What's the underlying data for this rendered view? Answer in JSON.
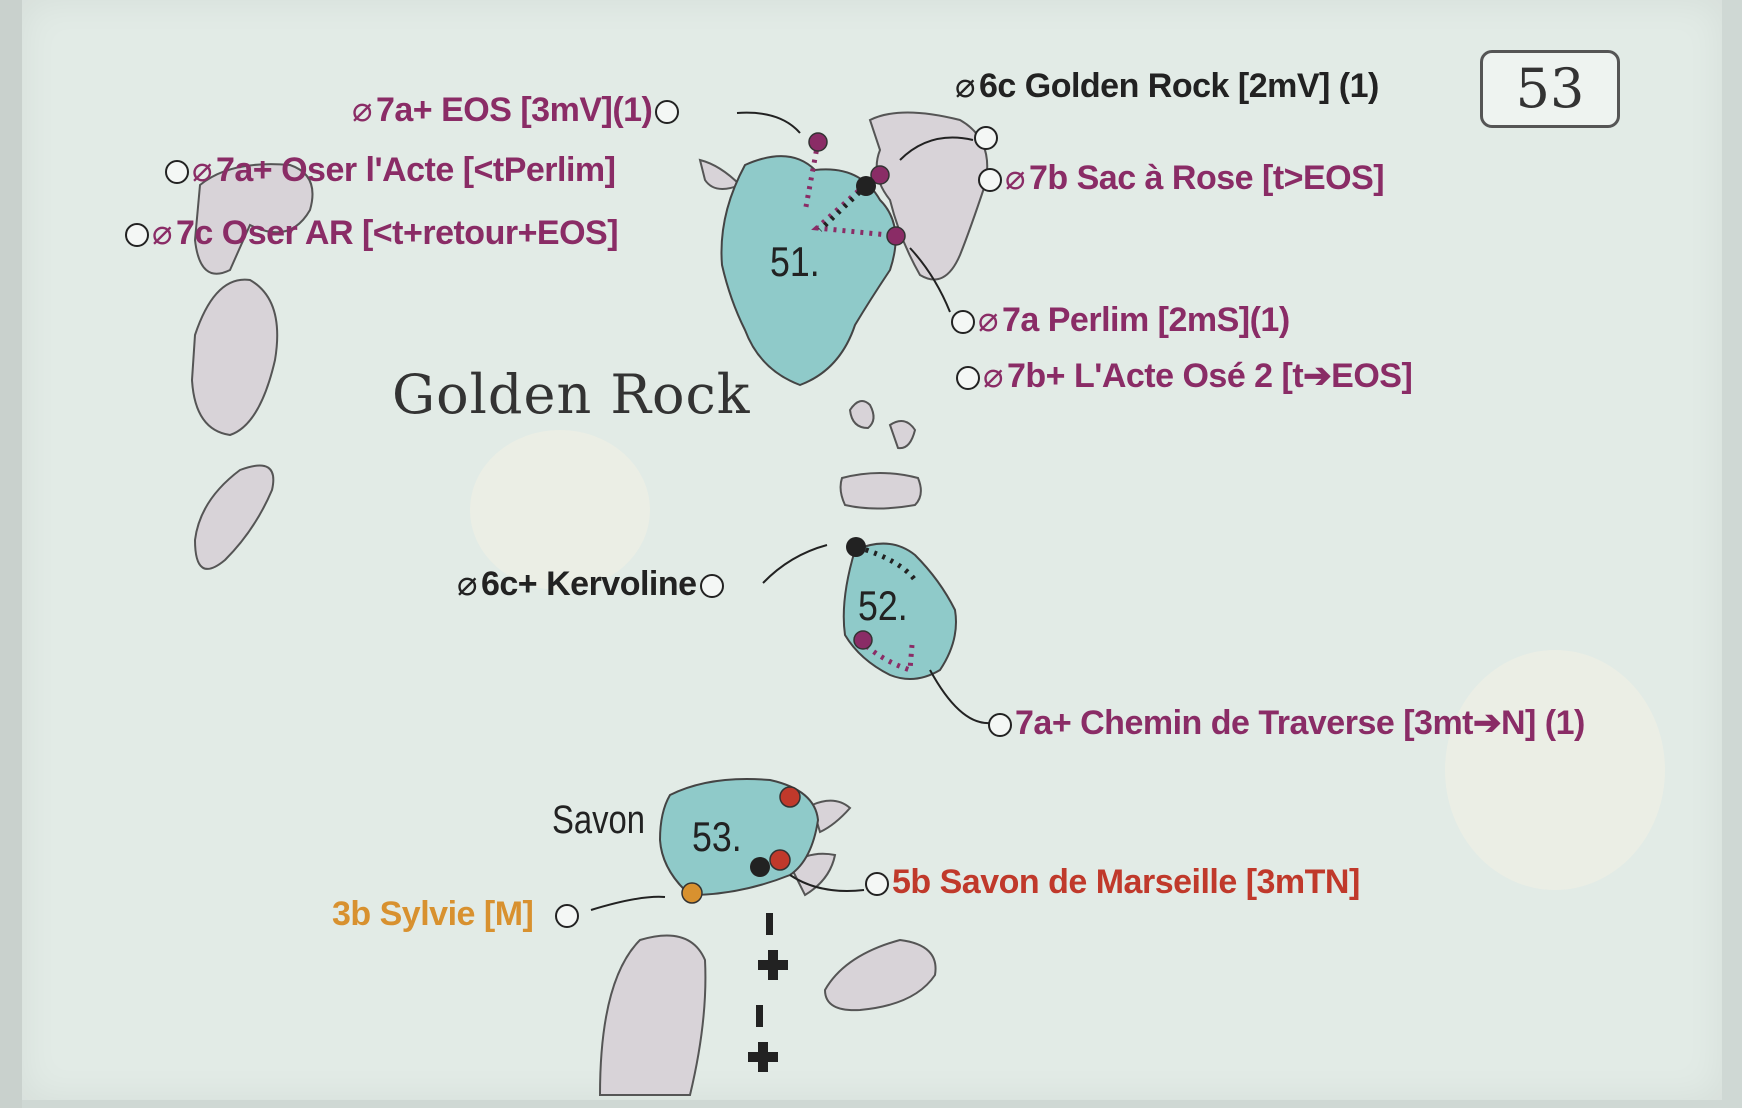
{
  "page_number": "53",
  "area_title": "Golden Rock",
  "sector_label": "Savon",
  "blocks": [
    {
      "number": "51."
    },
    {
      "number": "52."
    },
    {
      "number": "53."
    }
  ],
  "colors": {
    "purple": "#8a2c66",
    "red": "#c0392b",
    "orange": "#d8912f",
    "boulder_teal": "#8fcac9",
    "boulder_grey": "#d8d3d8"
  },
  "routes": [
    {
      "symbol": "⌀",
      "text": "7a+ EOS [3mV](1)",
      "color": "purple"
    },
    {
      "symbol": "⌀",
      "text": "7a+ Oser l'Acte [<tPerlim]",
      "color": "purple"
    },
    {
      "symbol": "⌀",
      "text": "7c Oser AR [<t+retour+EOS]",
      "color": "purple"
    },
    {
      "symbol": "⌀",
      "text": "6c Golden Rock [2mV] (1)",
      "color": "black"
    },
    {
      "symbol": "⌀",
      "text": "7b Sac à Rose [t>EOS]",
      "color": "purple"
    },
    {
      "symbol": "⌀",
      "text": "7a Perlim [2mS](1)",
      "color": "purple"
    },
    {
      "symbol": "⌀",
      "text": "7b+ L'Acte Osé 2 [t➔EOS]",
      "color": "purple"
    },
    {
      "symbol": "⌀",
      "text": "6c+ Kervoline",
      "color": "black"
    },
    {
      "symbol": "",
      "text": "7a+ Chemin de Traverse [3mt➔N] (1)",
      "color": "purple"
    },
    {
      "symbol": "",
      "text": "5b Savon de Marseille [3mTN]",
      "color": "red"
    },
    {
      "symbol": "",
      "text": "3b Sylvie [M]",
      "color": "orange"
    }
  ]
}
